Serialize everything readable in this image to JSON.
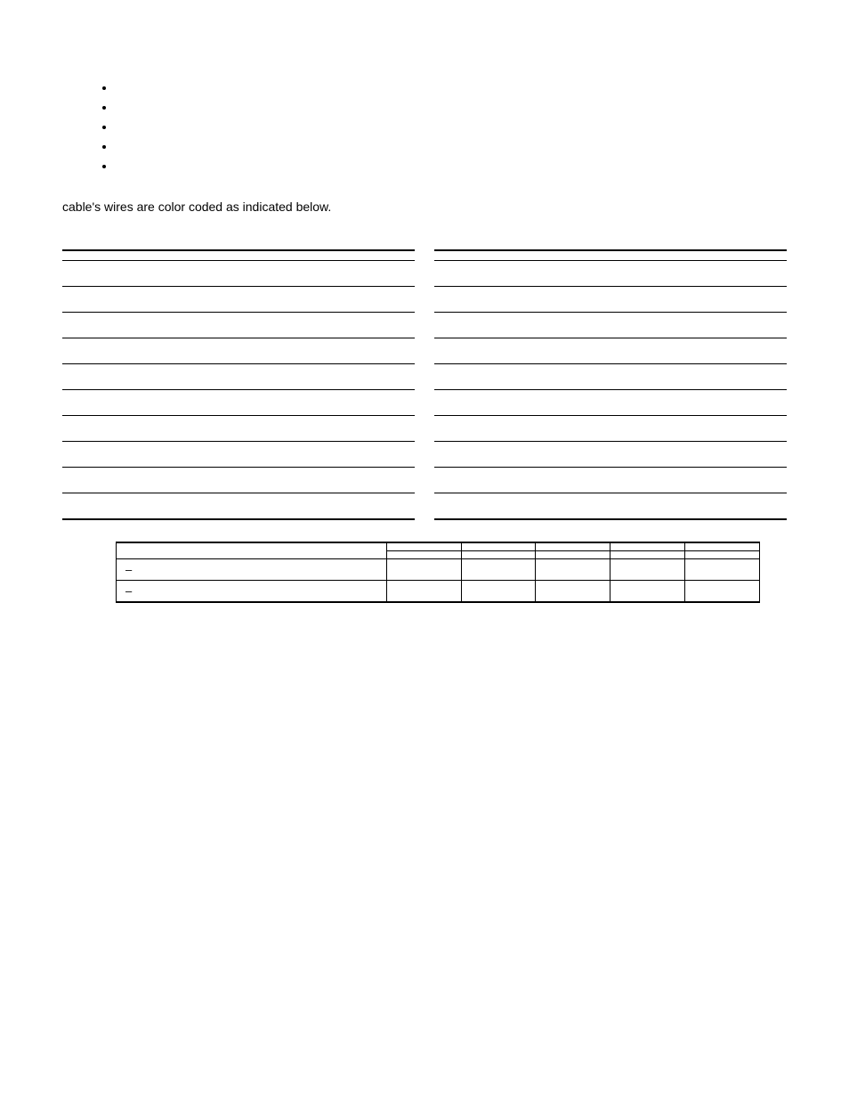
{
  "title": " ",
  "subtitle_prefix": " ",
  "bullets": [
    " ",
    " ",
    " ",
    " ",
    " "
  ],
  "section2_heading": " ",
  "section2_para_line1": " ",
  "section2_para_line2": "cable's wires are color coded as indicated below.",
  "pin_table": {
    "title": " ",
    "columns": [
      "",
      "",
      ""
    ],
    "rows_left": [
      [
        "",
        "",
        ""
      ],
      [
        "",
        "",
        ""
      ],
      [
        "",
        "",
        ""
      ],
      [
        "",
        "",
        ""
      ],
      [
        "",
        "",
        ""
      ],
      [
        "",
        "",
        ""
      ],
      [
        "",
        "",
        ""
      ],
      [
        "",
        "",
        ""
      ],
      [
        "",
        "",
        ""
      ],
      [
        "",
        "",
        ""
      ]
    ],
    "rows_right": [
      [
        "",
        "",
        ""
      ],
      [
        "",
        "",
        ""
      ],
      [
        "",
        "",
        ""
      ],
      [
        "",
        "",
        ""
      ],
      [
        "",
        "",
        ""
      ],
      [
        "",
        "",
        ""
      ],
      [
        "",
        "",
        ""
      ],
      [
        "",
        "",
        ""
      ],
      [
        "",
        "",
        ""
      ],
      [
        "",
        "",
        ""
      ]
    ]
  },
  "len_table": {
    "title": " ",
    "col_headers": [
      "",
      "",
      "",
      "",
      "",
      ""
    ],
    "sub_headers": [
      "",
      "",
      "",
      "",
      ""
    ],
    "row1_label": "–",
    "row1_cells": [
      "",
      "",
      "",
      "",
      ""
    ],
    "row2_label": "–",
    "row2_cells": [
      "",
      "",
      "",
      "",
      ""
    ]
  }
}
